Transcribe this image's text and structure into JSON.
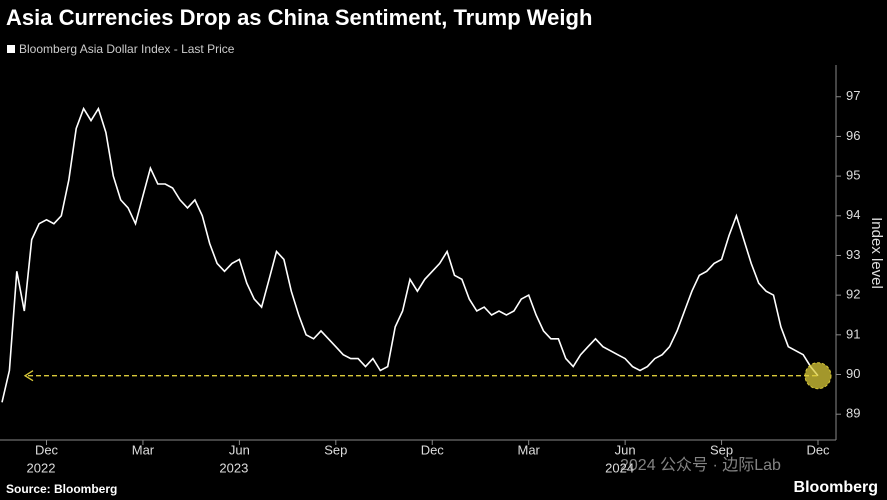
{
  "chart_data": {
    "type": "line",
    "title": "Asia Currencies Drop as China Sentiment, Trump Weigh",
    "y_label": "Index level",
    "source": "Source: Bloomberg",
    "brand": "Bloomberg",
    "watermark": "2024 公众号 · 边际Lab",
    "marker_color": "#d9c93a",
    "ylim": [
      88.4,
      97.8
    ],
    "yticks": [
      89,
      90,
      91,
      92,
      93,
      94,
      95,
      96,
      97
    ],
    "categories": [
      null,
      null,
      null,
      null,
      null,
      null,
      "Dec",
      null,
      null,
      null,
      null,
      null,
      null,
      null,
      null,
      null,
      null,
      null,
      null,
      "Mar",
      null,
      null,
      null,
      null,
      null,
      null,
      null,
      null,
      null,
      null,
      null,
      null,
      "Jun",
      null,
      null,
      null,
      null,
      null,
      null,
      null,
      null,
      null,
      null,
      null,
      null,
      "Sep",
      null,
      null,
      null,
      null,
      null,
      null,
      null,
      null,
      null,
      null,
      null,
      null,
      "Dec",
      null,
      null,
      null,
      null,
      null,
      null,
      null,
      null,
      null,
      null,
      null,
      null,
      "Mar",
      null,
      null,
      null,
      null,
      null,
      null,
      null,
      null,
      null,
      null,
      null,
      null,
      "Jun",
      null,
      null,
      null,
      null,
      null,
      null,
      null,
      null,
      null,
      null,
      null,
      null,
      "Sep",
      null,
      null,
      null,
      null,
      null,
      null,
      null,
      null,
      null,
      null,
      null,
      null,
      "Dec"
    ],
    "years": [
      null,
      null,
      null,
      null,
      null,
      null,
      "2022",
      null,
      null,
      null,
      null,
      null,
      null,
      null,
      null,
      null,
      null,
      null,
      null,
      null,
      null,
      null,
      null,
      null,
      null,
      null,
      null,
      null,
      null,
      null,
      null,
      null,
      "2023",
      null,
      null,
      null,
      null,
      null,
      null,
      null,
      null,
      null,
      null,
      null,
      null,
      null,
      null,
      null,
      null,
      null,
      null,
      null,
      null,
      null,
      null,
      null,
      null,
      null,
      null,
      null,
      null,
      null,
      null,
      null,
      null,
      null,
      null,
      null,
      null,
      null,
      null,
      null,
      null,
      null,
      null,
      null,
      null,
      null,
      null,
      null,
      null,
      null,
      null,
      null,
      "2024",
      null,
      null,
      null,
      null,
      null,
      null,
      null,
      null,
      null,
      null,
      null,
      null,
      null,
      null,
      null,
      null,
      null,
      null,
      null,
      null,
      null,
      null,
      null,
      null,
      null,
      null
    ],
    "series": [
      {
        "name": "Bloomberg Asia Dollar Index - Last Price",
        "color": "#ffffff",
        "values": [
          89.3,
          90.1,
          92.6,
          91.6,
          93.4,
          93.8,
          93.9,
          93.8,
          94.0,
          94.9,
          96.2,
          96.7,
          96.4,
          96.7,
          96.1,
          95.0,
          94.4,
          94.2,
          93.8,
          94.5,
          95.2,
          94.8,
          94.8,
          94.7,
          94.4,
          94.2,
          94.4,
          94.0,
          93.3,
          92.8,
          92.6,
          92.8,
          92.9,
          92.3,
          91.9,
          91.7,
          92.4,
          93.1,
          92.9,
          92.1,
          91.5,
          91.0,
          90.9,
          91.1,
          90.9,
          90.7,
          90.5,
          90.4,
          90.4,
          90.2,
          90.4,
          90.1,
          90.2,
          91.2,
          91.6,
          92.4,
          92.1,
          92.4,
          92.6,
          92.8,
          93.1,
          92.5,
          92.4,
          91.9,
          91.6,
          91.7,
          91.5,
          91.6,
          91.5,
          91.6,
          91.9,
          92.0,
          91.5,
          91.1,
          90.9,
          90.9,
          90.4,
          90.2,
          90.5,
          90.7,
          90.9,
          90.7,
          90.6,
          90.5,
          90.4,
          90.2,
          90.1,
          90.2,
          90.4,
          90.5,
          90.7,
          91.1,
          91.6,
          92.1,
          92.5,
          92.6,
          92.8,
          92.9,
          93.5,
          94.0,
          93.4,
          92.8,
          92.3,
          92.1,
          92.0,
          91.2,
          90.7,
          90.6,
          90.5,
          90.2,
          89.97
        ]
      }
    ]
  }
}
